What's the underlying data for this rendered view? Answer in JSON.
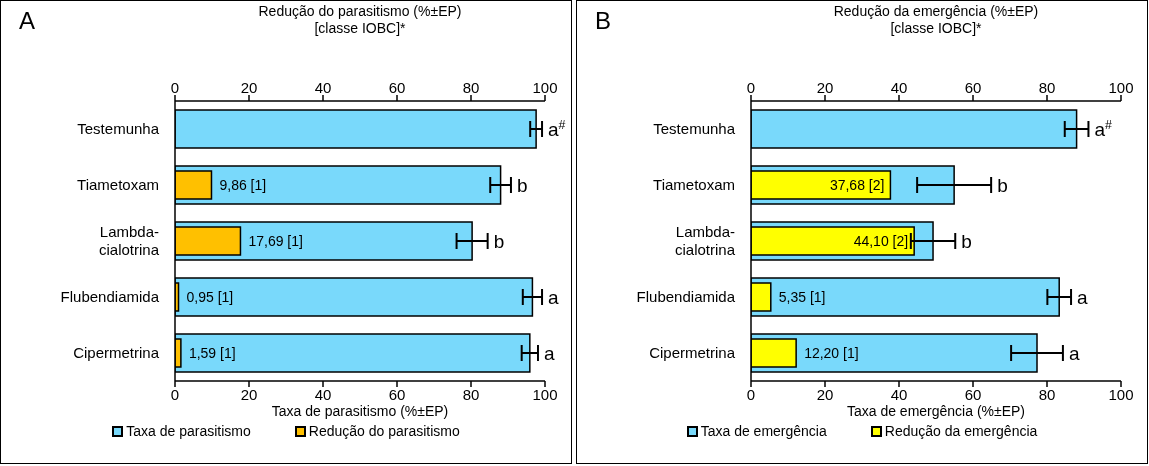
{
  "chart_data": [
    {
      "type": "bar",
      "orientation": "horizontal",
      "title": "A",
      "x2label": "Redução do parasitismo (%±EP)\n[classe IOBC]*",
      "xlabel": "Taxa de parasitismo (%±EP)",
      "categories": [
        "Testemunha",
        "Tiametoxam",
        "Lambda-cialotrina",
        "Flubendiamida",
        "Cipermetrina"
      ],
      "series": [
        {
          "name": "Taxa de parasitismo",
          "color": "#79d9fb",
          "values": [
            97.6,
            88.0,
            80.3,
            96.6,
            95.9
          ],
          "errors": [
            1.6,
            2.8,
            4.2,
            2.6,
            2.2
          ]
        },
        {
          "name": "Redução do parasitismo",
          "color": "#ffc000",
          "axis": "x2",
          "values": [
            null,
            9.86,
            17.69,
            0.95,
            1.59
          ],
          "value_labels": [
            null,
            "9,86 [1]",
            "17,69 [1]",
            "0,95 [1]",
            "1,59 [1]"
          ]
        }
      ],
      "xlim": [
        0,
        100
      ],
      "xticks": [
        0,
        20,
        40,
        60,
        80,
        100
      ],
      "x2lim": [
        0,
        100
      ],
      "x2ticks": [
        0,
        20,
        40,
        60,
        80,
        100
      ],
      "annotations": [
        {
          "text": "a$^{#}$",
          "x": 97.6,
          "y": "Testemunha"
        },
        {
          "text": "b",
          "x": 88.0,
          "y": "Tiametoxam"
        },
        {
          "text": "b",
          "x": 80.3,
          "y": "Lambda-cialotrina"
        },
        {
          "text": "a",
          "x": 96.6,
          "y": "Flubendiamida"
        },
        {
          "text": "a",
          "x": 95.9,
          "y": "Cipermetrina"
        }
      ],
      "grid": false,
      "legend": "bottom"
    },
    {
      "type": "bar",
      "orientation": "horizontal",
      "title": "B",
      "x2label": "Redução da emergência (%±EP)\n[classe IOBC]*",
      "xlabel": "Taxa de emergência (%±EP)",
      "categories": [
        "Testemunha",
        "Tiametoxam",
        "Lambda-cialotrina",
        "Flubendiamida",
        "Cipermetrina"
      ],
      "series": [
        {
          "name": "Taxa de emergência",
          "color": "#79d9fb",
          "values": [
            88.0,
            54.9,
            49.2,
            83.3,
            77.3
          ],
          "errors": [
            3.2,
            10,
            6,
            3.2,
            7
          ]
        },
        {
          "name": "Redução da emergência",
          "color": "#ffff00",
          "axis": "x2",
          "values": [
            null,
            37.68,
            44.1,
            5.35,
            12.2
          ],
          "value_labels": [
            null,
            "37,68 [2]",
            "44,10 [2]",
            "5,35 [1]",
            "12,20 [1]"
          ]
        }
      ],
      "xlim": [
        0,
        100
      ],
      "xticks": [
        0,
        20,
        40,
        60,
        80,
        100
      ],
      "x2lim": [
        0,
        100
      ],
      "x2ticks": [
        0,
        20,
        40,
        60,
        80,
        100
      ],
      "annotations": [
        {
          "text": "a$^{#}$",
          "x": 88.0,
          "y": "Testemunha"
        },
        {
          "text": "b",
          "x": 54.9,
          "y": "Tiametoxam"
        },
        {
          "text": "b",
          "x": 49.2,
          "y": "Lambda-cialotrina"
        },
        {
          "text": "a",
          "x": 83.3,
          "y": "Flubendiamida"
        },
        {
          "text": "a",
          "x": 77.3,
          "y": "Cipermetrina"
        }
      ],
      "grid": false,
      "legend": "bottom"
    }
  ]
}
